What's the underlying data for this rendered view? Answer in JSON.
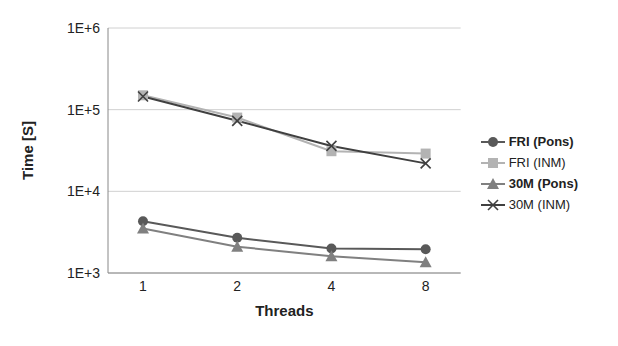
{
  "chart_data": {
    "type": "line",
    "x_label": "Threads",
    "y_label": "Time [S]",
    "categories": [
      "1",
      "2",
      "4",
      "8"
    ],
    "log": "y",
    "ylim": [
      1000,
      1000000
    ],
    "yticks": [
      {
        "value": 1000,
        "label": "1E+3"
      },
      {
        "value": 10000,
        "label": "1E+4"
      },
      {
        "value": 100000,
        "label": "1E+5"
      },
      {
        "value": 1000000,
        "label": "1E+6"
      }
    ],
    "grid": true,
    "legend": "right",
    "series": [
      {
        "name": "FRI (Pons)",
        "color": "#595959",
        "marker": "circle",
        "values": [
          4300,
          2700,
          2000,
          1950
        ]
      },
      {
        "name": "FRI (INM)",
        "color": "#b3b3b3",
        "marker": "square",
        "values": [
          150000,
          80000,
          31000,
          29000
        ]
      },
      {
        "name": "30M (Pons)",
        "color": "#808080",
        "marker": "triangle",
        "values": [
          3500,
          2100,
          1600,
          1350
        ]
      },
      {
        "name": "30M (INM)",
        "color": "#404040",
        "marker": "cross",
        "values": [
          145000,
          73000,
          36000,
          22000
        ]
      }
    ]
  }
}
